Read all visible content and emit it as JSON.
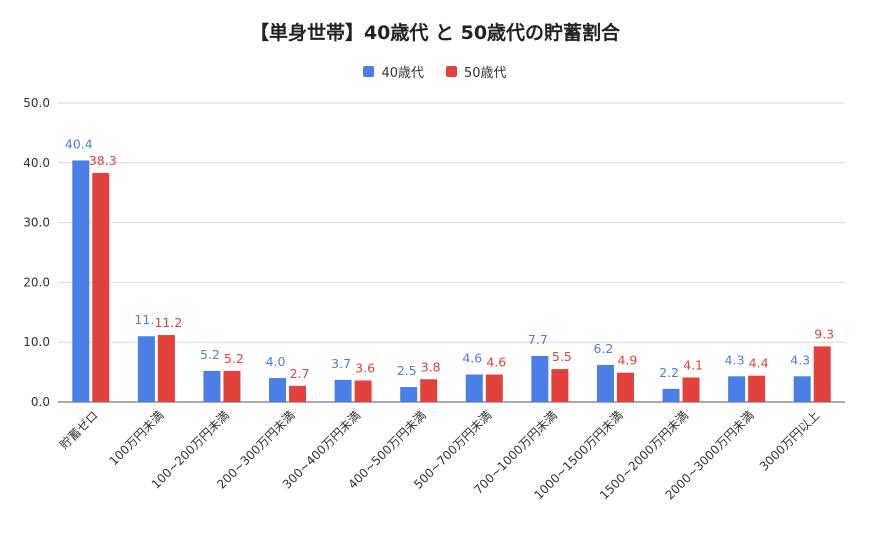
{
  "chart_data": {
    "type": "bar",
    "title": "【単身世帯】40歳代 と 50歳代の貯蓄割合",
    "categories": [
      "貯蓄ゼロ",
      "100万円未満",
      "100~200万円未満",
      "200~300万円未満",
      "300~400万円未満",
      "400~500万円未満",
      "500~700万円未満",
      "700~1000万円未満",
      "1000~1500万円未満",
      "1500~2000万円未満",
      "2000~3000万円未満",
      "3000万円以上"
    ],
    "series": [
      {
        "name": "40歳代",
        "color": "#4a7fe6",
        "values": [
          40.4,
          11.0,
          5.2,
          4.0,
          3.7,
          2.5,
          4.6,
          7.7,
          6.2,
          2.2,
          4.3,
          4.3
        ],
        "labels": [
          "40.4",
          "11.",
          "5.2",
          "4.0",
          "3.7",
          "2.5",
          "4.6",
          "7.7",
          "6.2",
          "2.2",
          "4.3",
          "4.3"
        ]
      },
      {
        "name": "50歳代",
        "color": "#e2423b",
        "values": [
          38.3,
          11.2,
          5.2,
          2.7,
          3.6,
          3.8,
          4.6,
          5.5,
          4.9,
          4.1,
          4.4,
          9.3
        ],
        "labels": [
          "38.3",
          "11.2",
          "5.2",
          "2.7",
          "3.6",
          "3.8",
          "4.6",
          "5.5",
          "4.9",
          "4.1",
          "4.4",
          "9.3"
        ]
      }
    ],
    "yticks": [
      "0.0",
      "10.0",
      "20.0",
      "30.0",
      "40.0",
      "50.0"
    ],
    "ylim": [
      0,
      50
    ],
    "grid": true,
    "legend_position": "top"
  }
}
